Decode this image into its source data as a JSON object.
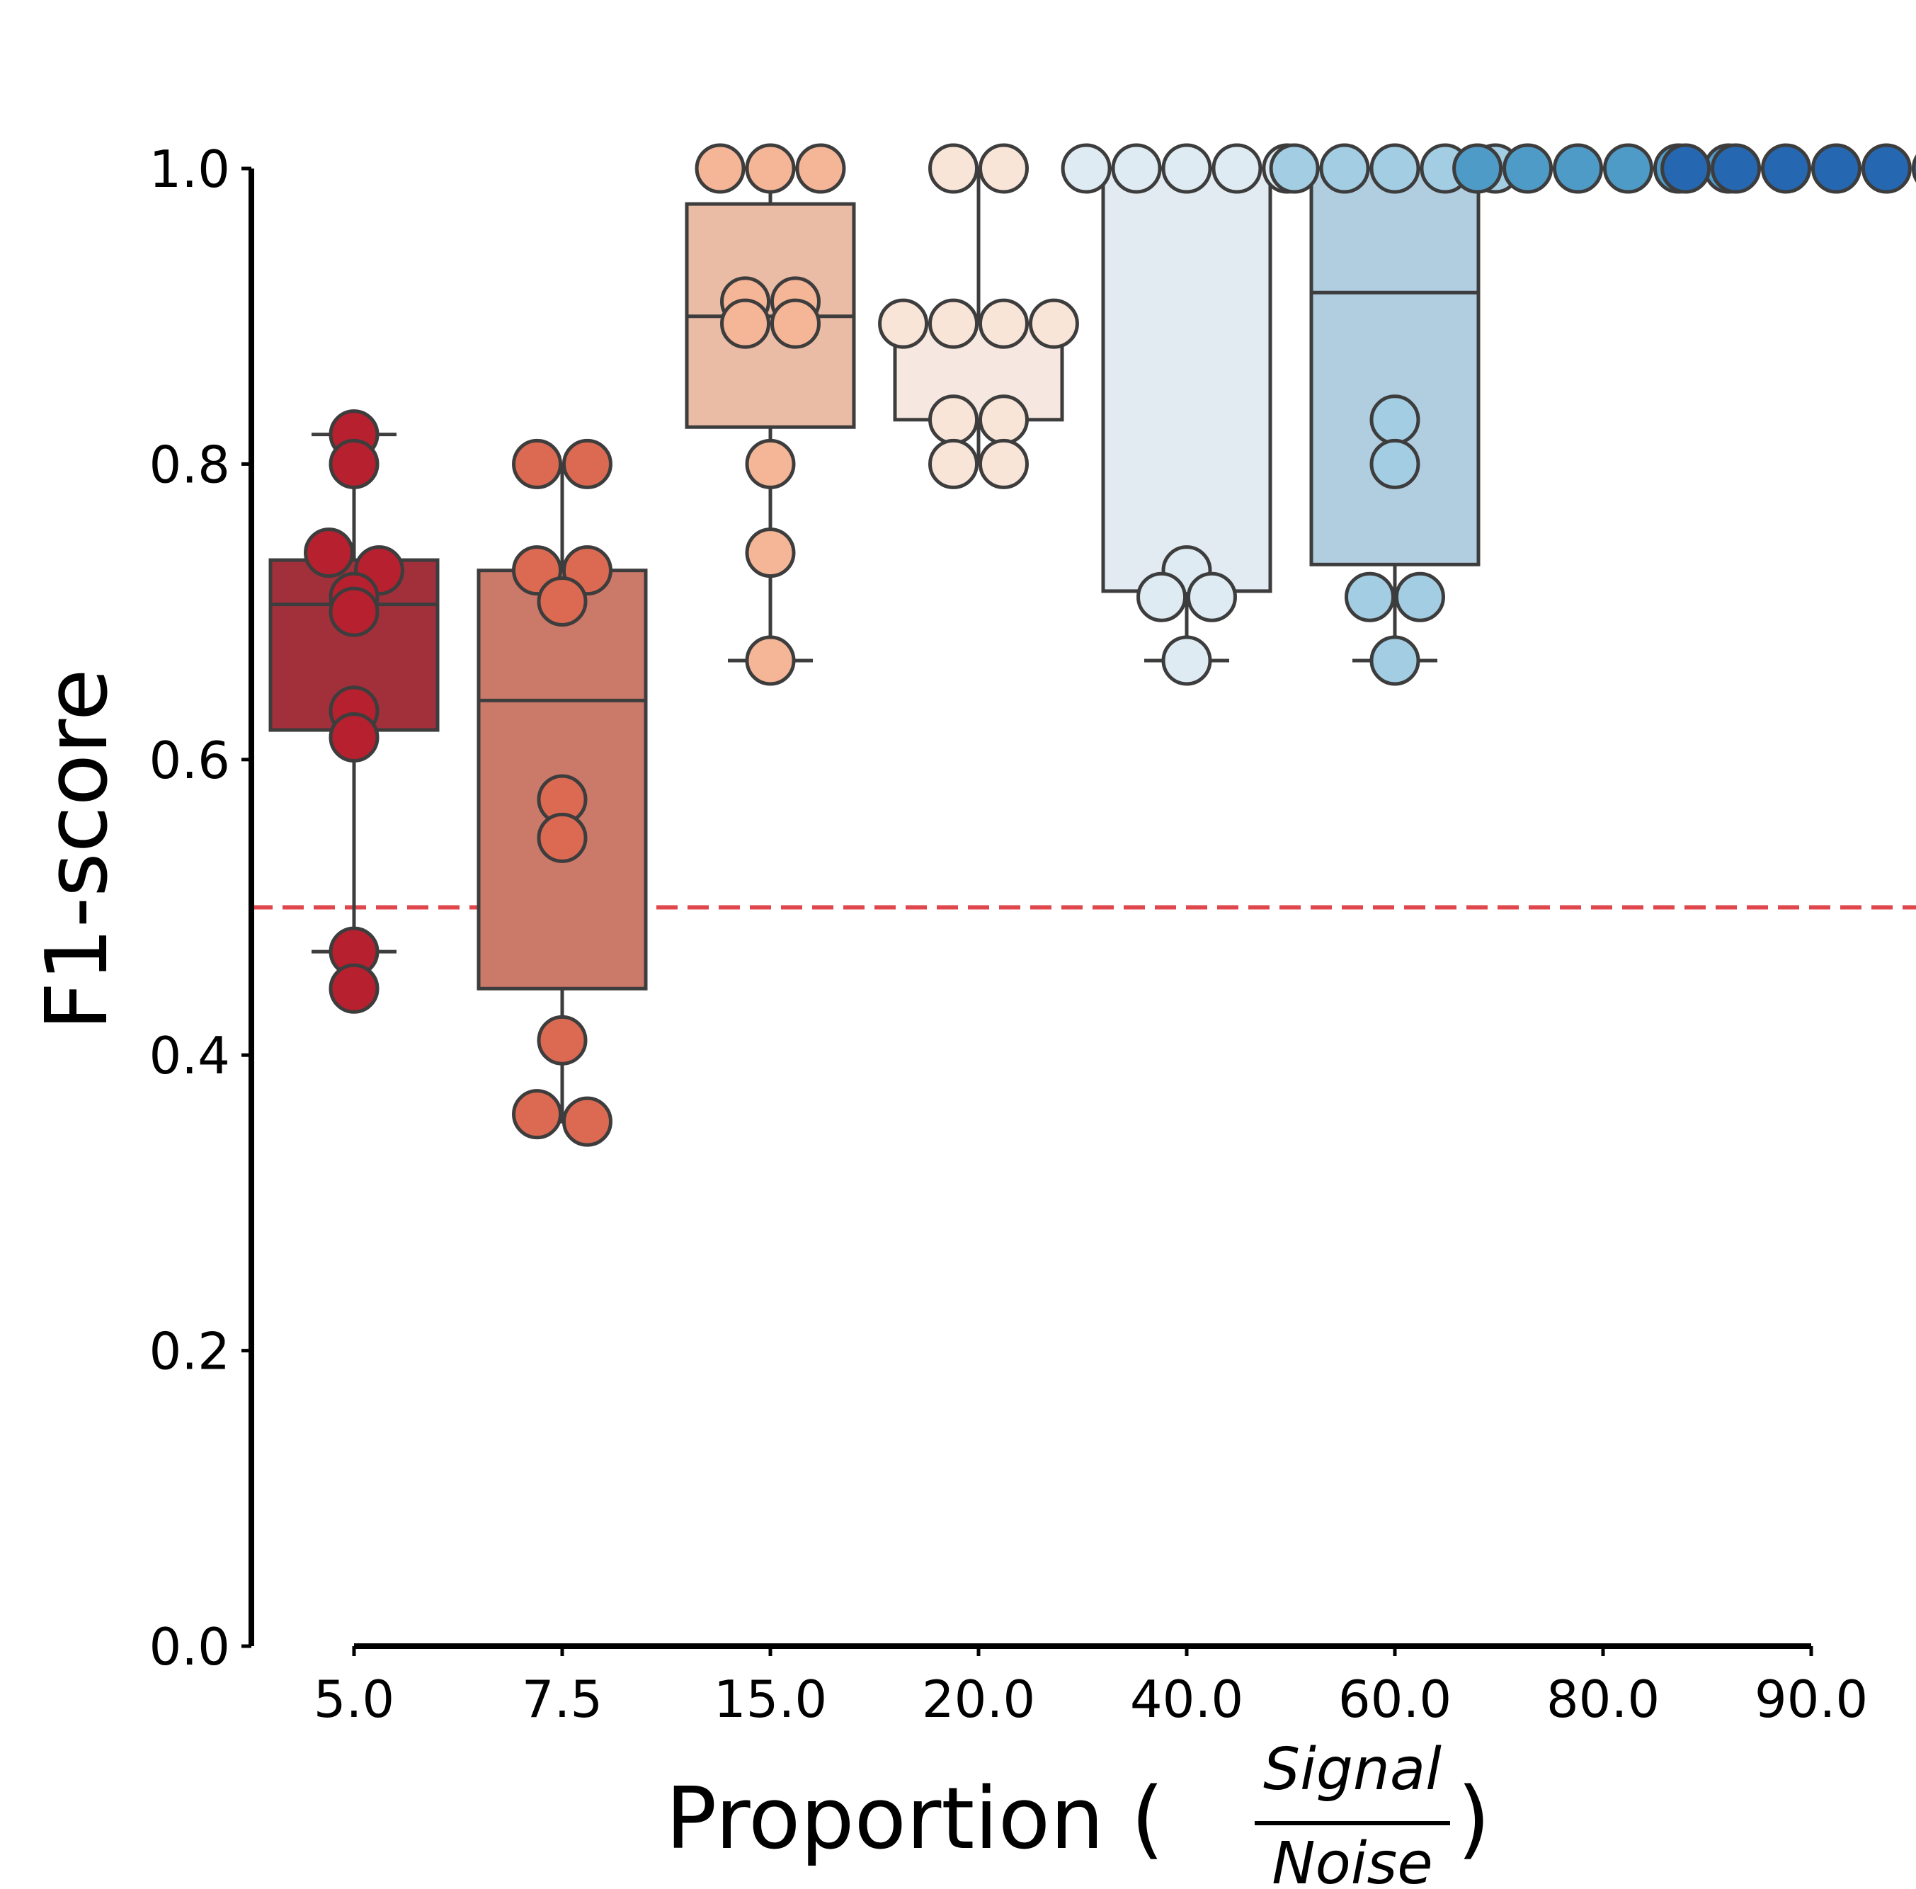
{
  "chart_data": {
    "type": "box+swarm",
    "xlabel": "Proportion (",
    "xlabel_suffix": ")",
    "xlabel_fraction": {
      "numerator": "Signal",
      "denominator": "Noise"
    },
    "ylabel": "F1-score",
    "ylim": [
      0,
      1
    ],
    "yticks": [
      "0.0",
      "0.2",
      "0.4",
      "0.6",
      "0.8",
      "1.0"
    ],
    "reference_line": {
      "y": 0.5,
      "color": "#e0474c",
      "style": "dashed"
    },
    "categories": [
      "5.0",
      "7.5",
      "15.0",
      "20.0",
      "40.0",
      "60.0",
      "80.0",
      "90.0"
    ],
    "boxes": [
      {
        "category": "5.0",
        "q1": 0.62,
        "median": 0.705,
        "q3": 0.735,
        "whisker_low": 0.47,
        "whisker_high": 0.82,
        "box_color": "#a1303b",
        "point_color": "#b7202e"
      },
      {
        "category": "7.5",
        "q1": 0.445,
        "median": 0.64,
        "q3": 0.728,
        "whisker_low": 0.355,
        "whisker_high": 0.8,
        "box_color": "#cb7969",
        "point_color": "#dc6a52"
      },
      {
        "category": "15.0",
        "q1": 0.825,
        "median": 0.9,
        "q3": 0.976,
        "whisker_low": 0.667,
        "whisker_high": 1.0,
        "box_color": "#eabba5",
        "point_color": "#f5b597"
      },
      {
        "category": "20.0",
        "q1": 0.83,
        "median": 0.895,
        "q3": 0.895,
        "whisker_low": 0.8,
        "whisker_high": 1.0,
        "box_color": "#f6e8e0",
        "point_color": "#f9e4d8"
      },
      {
        "category": "40.0",
        "q1": 0.714,
        "median": 1.0,
        "q3": 1.0,
        "whisker_low": 0.667,
        "whisker_high": 1.0,
        "box_color": "#e3ebf2",
        "point_color": "#deebf2"
      },
      {
        "category": "60.0",
        "q1": 0.732,
        "median": 0.916,
        "q3": 1.0,
        "whisker_low": 0.667,
        "whisker_high": 1.0,
        "box_color": "#b1cde0",
        "point_color": "#a2cde3"
      },
      {
        "category": "80.0",
        "q1": 1.0,
        "median": 1.0,
        "q3": 1.0,
        "whisker_low": 1.0,
        "whisker_high": 1.0,
        "box_color": "#5199c7",
        "point_color": "#4f9bc7"
      },
      {
        "category": "90.0",
        "q1": 1.0,
        "median": 1.0,
        "q3": 1.0,
        "whisker_low": 1.0,
        "whisker_high": 1.0,
        "box_color": "#2a6eb1",
        "point_color": "#2567b0"
      }
    ],
    "points": [
      {
        "category": "5.0",
        "values": [
          0.82,
          0.8,
          0.74,
          0.728,
          0.71,
          0.7,
          0.633,
          0.615,
          0.47,
          0.445
        ]
      },
      {
        "category": "7.5",
        "values": [
          0.8,
          0.8,
          0.728,
          0.728,
          0.707,
          0.573,
          0.547,
          0.41,
          0.36,
          0.355
        ]
      },
      {
        "category": "15.0",
        "values": [
          1.0,
          1.0,
          1.0,
          0.91,
          0.91,
          0.895,
          0.895,
          0.8,
          0.74,
          0.667
        ]
      },
      {
        "category": "20.0",
        "values": [
          1.0,
          1.0,
          0.895,
          0.895,
          0.895,
          0.895,
          0.83,
          0.83,
          0.8,
          0.8
        ]
      },
      {
        "category": "40.0",
        "values": [
          1.0,
          1.0,
          1.0,
          1.0,
          1.0,
          0.728,
          0.71,
          0.71,
          0.667
        ]
      },
      {
        "category": "60.0",
        "values": [
          1.0,
          1.0,
          1.0,
          1.0,
          1.0,
          0.83,
          0.8,
          0.71,
          0.71,
          0.667
        ]
      },
      {
        "category": "80.0",
        "values": [
          1.0,
          1.0,
          1.0,
          1.0,
          1.0,
          1.0
        ]
      },
      {
        "category": "90.0",
        "values": [
          1.0,
          1.0,
          1.0,
          1.0,
          1.0,
          1.0
        ]
      }
    ],
    "grid": false,
    "legend": "none"
  }
}
